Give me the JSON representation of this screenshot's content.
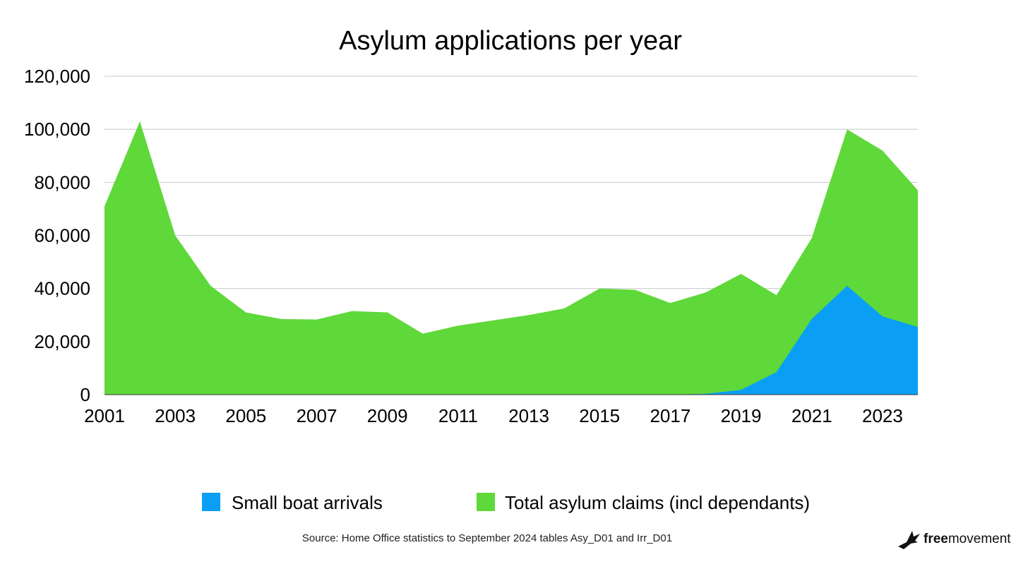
{
  "chart_data": {
    "type": "area",
    "title": "Asylum applications per year",
    "xlabel": "",
    "ylabel": "",
    "x": [
      2001,
      2002,
      2003,
      2004,
      2005,
      2006,
      2007,
      2008,
      2009,
      2010,
      2011,
      2012,
      2013,
      2014,
      2015,
      2016,
      2017,
      2018,
      2019,
      2020,
      2021,
      2022,
      2023,
      2024
    ],
    "xticks": [
      "2001",
      "2003",
      "2005",
      "2007",
      "2009",
      "2011",
      "2013",
      "2015",
      "2017",
      "2019",
      "2021",
      "2023"
    ],
    "yticks": [
      "0",
      "20,000",
      "40,000",
      "60,000",
      "80,000",
      "100,000",
      "120,000"
    ],
    "ylim": [
      0,
      120000
    ],
    "grid": true,
    "legend_position": "bottom",
    "series": [
      {
        "name": "Total asylum claims (incl dependants)",
        "color": "#5fd83a",
        "values": [
          71000,
          103000,
          60000,
          41000,
          31000,
          28500,
          28300,
          31500,
          31000,
          23000,
          26000,
          28000,
          30000,
          32500,
          40000,
          39500,
          34500,
          38500,
          45500,
          37500,
          59000,
          100000,
          92000,
          77000
        ]
      },
      {
        "name": "Small boat arrivals",
        "color": "#0a9ff5",
        "values": [
          0,
          0,
          0,
          0,
          0,
          0,
          0,
          0,
          0,
          0,
          0,
          0,
          0,
          0,
          0,
          0,
          0,
          300,
          1800,
          8500,
          28500,
          41000,
          29500,
          25500
        ]
      }
    ],
    "legend": [
      {
        "label": "Small boat arrivals",
        "color": "#0a9ff5"
      },
      {
        "label": "Total asylum claims (incl dependants)",
        "color": "#5fd83a"
      }
    ]
  },
  "source_text": "Source: Home Office statistics to September 2024 tables Asy_D01 and Irr_D01",
  "logo": {
    "bold": "free",
    "rest": "movement"
  }
}
